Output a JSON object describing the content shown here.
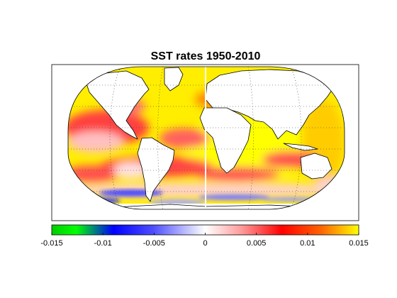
{
  "title": "SST rates 1950-2010",
  "colorbar": {
    "min": -0.015,
    "max": 0.015,
    "ticks": [
      "-0.015",
      "-0.01",
      "-0.005",
      "0",
      "0.005",
      "0.01",
      "0.015"
    ],
    "colormap": [
      "#00cc00",
      "#00ff00",
      "#0000ff",
      "#4d4dff",
      "#ffffff",
      "#ff8080",
      "#ff0000",
      "#ff6600",
      "#ffff00"
    ]
  },
  "map": {
    "projection": "Robinson",
    "grid": "dotted",
    "land_color": "#ffffff",
    "ocean_base_color": "#ffe000"
  }
}
